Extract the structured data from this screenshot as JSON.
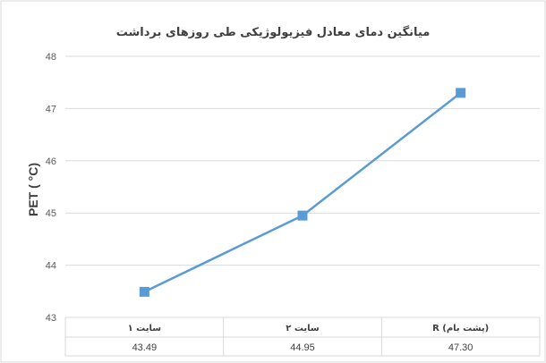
{
  "chart_data": {
    "type": "line",
    "title": "میانگین دمای معادل فیزیولوژیکی طی روزهای برداشت",
    "xlabel": "",
    "ylabel": "PET ( °C)",
    "ylim": [
      43,
      48
    ],
    "yticks": [
      "43",
      "44",
      "45",
      "46",
      "47",
      "48"
    ],
    "grid": true,
    "legend": "none",
    "categories": [
      "سایت ۱",
      "سایت ۲",
      "R (پشت بام)"
    ],
    "series": [
      {
        "values": [
          43.49,
          44.95,
          47.3
        ],
        "color": "#5b9bd5"
      }
    ],
    "data_table": [
      "43.49",
      "44.95",
      "47.30"
    ]
  }
}
